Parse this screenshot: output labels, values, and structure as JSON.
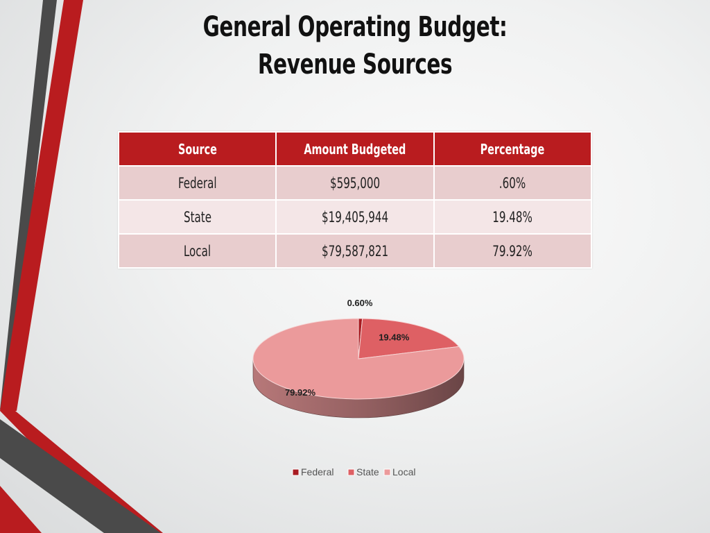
{
  "slide": {
    "title_line1": "General Operating Budget:",
    "title_line2": "Revenue Sources"
  },
  "table": {
    "headers": [
      "Source",
      "Amount Budgeted",
      "Percentage"
    ],
    "rows": [
      [
        "Federal",
        "$595,000",
        ".60%"
      ],
      [
        "State",
        "$19,405,944",
        "19.48%"
      ],
      [
        "Local",
        "$79,587,821",
        "79.92%"
      ]
    ]
  },
  "colors": {
    "accent_red": "#b91c1f",
    "dark_stripe": "#4a4a4a"
  },
  "chart_data": {
    "type": "pie",
    "style": "3d",
    "title": "",
    "labels": [
      "Federal",
      "State",
      "Local"
    ],
    "values": [
      0.6,
      19.48,
      79.92
    ],
    "data_labels": [
      "0.60%",
      "19.48%",
      "79.92%"
    ],
    "colors": [
      "#a81c22",
      "#de6064",
      "#eb9a9b"
    ],
    "legend": "bottom"
  }
}
